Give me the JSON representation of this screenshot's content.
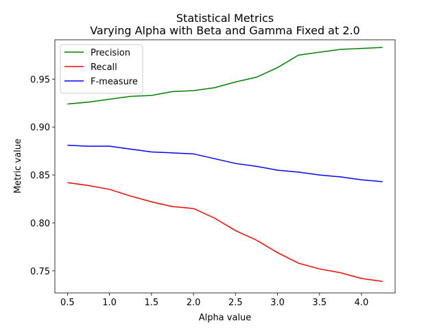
{
  "chart_data": {
    "type": "line",
    "title": "Statistical Metrics",
    "subtitle": "Varying Alpha with Beta and Gamma Fixed at 2.0",
    "xlabel": "Alpha value",
    "ylabel": "Metric value",
    "xlim": [
      0.35,
      4.4
    ],
    "ylim": [
      0.727,
      0.991
    ],
    "xticks": [
      0.5,
      1.0,
      1.5,
      2.0,
      2.5,
      3.0,
      3.5,
      4.0
    ],
    "xtick_labels": [
      "0.5",
      "1.0",
      "1.5",
      "2.0",
      "2.5",
      "3.0",
      "3.5",
      "4.0"
    ],
    "yticks": [
      0.75,
      0.8,
      0.85,
      0.9,
      0.95
    ],
    "ytick_labels": [
      "0.75",
      "0.80",
      "0.85",
      "0.90",
      "0.95"
    ],
    "grid": false,
    "legend_position": "top-left",
    "x": [
      0.5,
      0.75,
      1.0,
      1.25,
      1.5,
      1.75,
      2.0,
      2.25,
      2.5,
      2.75,
      3.0,
      3.25,
      3.5,
      3.75,
      4.0,
      4.25
    ],
    "series": [
      {
        "name": "Precision",
        "color": "#008000",
        "values": [
          0.924,
          0.926,
          0.929,
          0.932,
          0.933,
          0.937,
          0.938,
          0.941,
          0.947,
          0.952,
          0.962,
          0.975,
          0.978,
          0.981,
          0.982,
          0.983
        ]
      },
      {
        "name": "Recall",
        "color": "#ff0000",
        "values": [
          0.842,
          0.839,
          0.835,
          0.828,
          0.822,
          0.817,
          0.815,
          0.805,
          0.792,
          0.782,
          0.769,
          0.758,
          0.752,
          0.748,
          0.742,
          0.739
        ]
      },
      {
        "name": "F-measure",
        "color": "#0000ff",
        "values": [
          0.881,
          0.88,
          0.88,
          0.877,
          0.874,
          0.873,
          0.872,
          0.867,
          0.862,
          0.859,
          0.855,
          0.853,
          0.85,
          0.848,
          0.845,
          0.843
        ]
      }
    ]
  }
}
